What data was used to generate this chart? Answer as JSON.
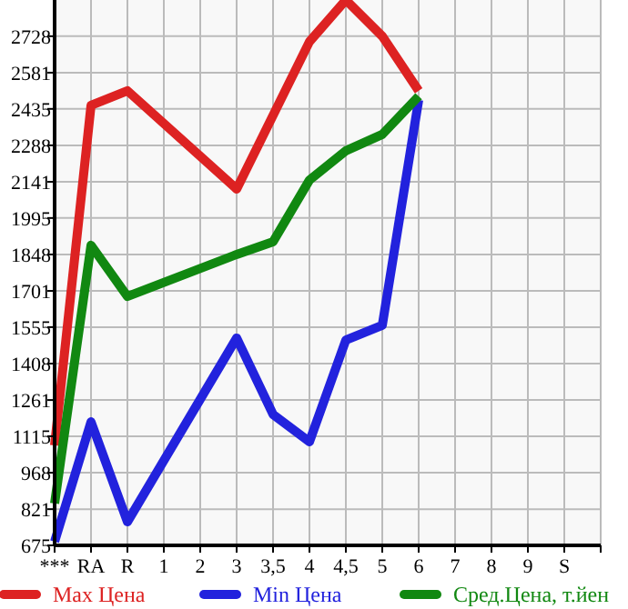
{
  "chart_data": {
    "type": "line",
    "categories": [
      "***",
      "RA",
      "R",
      "1",
      "2",
      "3",
      "3,5",
      "4",
      "4,5",
      "5",
      "6",
      "7",
      "8",
      "9",
      "S",
      null
    ],
    "series": [
      {
        "name": "Max Цена",
        "color": "#dd2222",
        "values": [
          1078,
          2449,
          2508,
          null,
          null,
          2112,
          null,
          2706,
          2874,
          2728,
          2508,
          null,
          null,
          null,
          null,
          null
        ]
      },
      {
        "name": "Min Цена",
        "color": "#2222dd",
        "values": [
          690,
          1173,
          770,
          null,
          null,
          1511,
          1203,
          1093,
          1503,
          1562,
          2471,
          null,
          null,
          null,
          null,
          null
        ]
      },
      {
        "name": "Сред.Цена, т.йен",
        "color": "#118811",
        "values": [
          844,
          1885,
          1679,
          null,
          null,
          1848,
          1899,
          2148,
          2266,
          2332,
          2486,
          null,
          null,
          null,
          null,
          null
        ]
      }
    ],
    "ylim": [
      675,
      2874
    ],
    "yticks": [
      675,
      821,
      968,
      1115,
      1261,
      1408,
      1555,
      1701,
      1848,
      1995,
      2141,
      2288,
      2435,
      2581,
      2728
    ],
    "grid": true,
    "legend": "bottom",
    "line_style": "solid",
    "marker": "none"
  }
}
